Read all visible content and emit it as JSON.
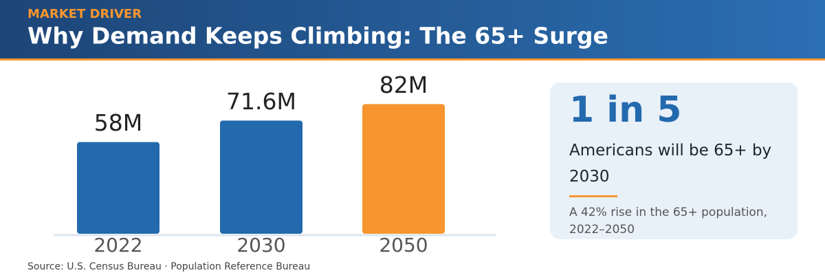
{
  "eyebrow": "MARKET DRIVER",
  "chart_data": {
    "type": "bar",
    "title": "Why Demand Keeps Climbing: The 65+ Surge",
    "categories": [
      "2022",
      "2030",
      "2050"
    ],
    "values": [
      58,
      71.6,
      82
    ],
    "value_labels": [
      "58M",
      "71.6M",
      "82M"
    ],
    "colors": [
      "#2369ad",
      "#2369ad",
      "#f7962e"
    ]
  },
  "source": "Source: U.S. Census Bureau · Population Reference Bureau",
  "callout": {
    "headline": "1 in 5",
    "text": "Americans will be 65+ by 2030",
    "note": "A 42% rise in the 65+ population, 2022–2050"
  }
}
